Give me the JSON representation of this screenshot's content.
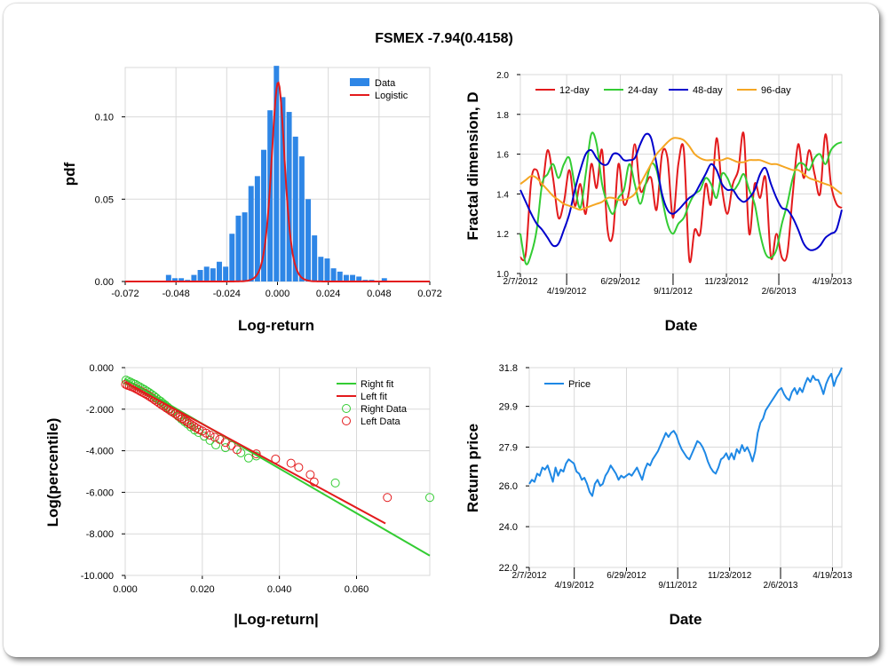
{
  "page": {
    "title": "FSMEX -7.94(0.4158)",
    "colors": {
      "grid": "#d9d9d9",
      "axis": "#000000",
      "bar": "#2e86e6",
      "red": "#e31a1c",
      "green": "#33cc33",
      "blue": "#0000cc",
      "orange": "#f5a623",
      "price": "#1e88e5"
    }
  },
  "chart_data": [
    {
      "id": "pdf",
      "type": "bar",
      "xlabel": "Log-return",
      "ylabel": "pdf",
      "xlim": [
        -0.072,
        0.072
      ],
      "ylim": [
        0,
        0.13
      ],
      "x_ticks": [
        "-0.072",
        "-0.048",
        "-0.024",
        "0.000",
        "0.024",
        "0.048",
        "0.072"
      ],
      "x_tick_values": [
        -0.072,
        -0.048,
        -0.024,
        0.0,
        0.024,
        0.048,
        0.072
      ],
      "y_ticks": [
        "0.00",
        "0.05",
        "0.10"
      ],
      "y_tick_values": [
        0.0,
        0.05,
        0.1
      ],
      "legend": [
        {
          "label": "Data",
          "kind": "bar"
        },
        {
          "label": "Logistic",
          "kind": "line"
        }
      ],
      "bins": [
        {
          "x": -0.0515,
          "y": 0.004
        },
        {
          "x": -0.0485,
          "y": 0.002
        },
        {
          "x": -0.0455,
          "y": 0.002
        },
        {
          "x": -0.0425,
          "y": 0.001
        },
        {
          "x": -0.0395,
          "y": 0.004
        },
        {
          "x": -0.0365,
          "y": 0.007
        },
        {
          "x": -0.0335,
          "y": 0.009
        },
        {
          "x": -0.0305,
          "y": 0.008
        },
        {
          "x": -0.0275,
          "y": 0.012
        },
        {
          "x": -0.0245,
          "y": 0.009
        },
        {
          "x": -0.0215,
          "y": 0.029
        },
        {
          "x": -0.0185,
          "y": 0.04
        },
        {
          "x": -0.0155,
          "y": 0.042
        },
        {
          "x": -0.0125,
          "y": 0.058
        },
        {
          "x": -0.0095,
          "y": 0.064
        },
        {
          "x": -0.0065,
          "y": 0.08
        },
        {
          "x": -0.0035,
          "y": 0.104
        },
        {
          "x": -0.0005,
          "y": 0.131
        },
        {
          "x": 0.0025,
          "y": 0.112
        },
        {
          "x": 0.0055,
          "y": 0.103
        },
        {
          "x": 0.0085,
          "y": 0.088
        },
        {
          "x": 0.0115,
          "y": 0.076
        },
        {
          "x": 0.0145,
          "y": 0.05
        },
        {
          "x": 0.0175,
          "y": 0.028
        },
        {
          "x": 0.0205,
          "y": 0.015
        },
        {
          "x": 0.0235,
          "y": 0.014
        },
        {
          "x": 0.0265,
          "y": 0.008
        },
        {
          "x": 0.0295,
          "y": 0.006
        },
        {
          "x": 0.0325,
          "y": 0.004
        },
        {
          "x": 0.0355,
          "y": 0.004
        },
        {
          "x": 0.0385,
          "y": 0.003
        },
        {
          "x": 0.0415,
          "y": 0.001
        },
        {
          "x": 0.0445,
          "y": 0.001
        },
        {
          "x": 0.0505,
          "y": 0.002
        }
      ],
      "bin_width": 0.0025,
      "logistic": {
        "mu": 0.0003,
        "s": 0.0021
      }
    },
    {
      "id": "fractal",
      "type": "line",
      "xlabel": "Date",
      "ylabel": "Fractal dimension, D",
      "ylim": [
        1.0,
        2.0
      ],
      "y_ticks": [
        "1.0",
        "1.2",
        "1.4",
        "1.6",
        "1.8",
        "2.0"
      ],
      "y_tick_values": [
        1.0,
        1.2,
        1.4,
        1.6,
        1.8,
        2.0
      ],
      "x_ticks_top": [
        "2/7/2012",
        "6/29/2012",
        "11/23/2012",
        "4/19/2013"
      ],
      "x_ticks_bottom": [
        "4/19/2012",
        "9/11/2012",
        "2/6/2013"
      ],
      "x_tick_positions": [
        0.0,
        0.144,
        0.311,
        0.475,
        0.641,
        0.804,
        0.97
      ],
      "legend": [
        "12-day",
        "24-day",
        "48-day",
        "96-day"
      ],
      "series": [
        {
          "name": "12-day",
          "color": "red",
          "values": [
            1.08,
            1.1,
            1.47,
            1.52,
            1.44,
            1.62,
            1.48,
            1.28,
            1.36,
            1.52,
            1.34,
            1.45,
            1.3,
            1.55,
            1.43,
            1.62,
            1.22,
            1.2,
            1.55,
            1.35,
            1.42,
            1.65,
            1.42,
            1.45,
            1.48,
            1.32,
            1.6,
            1.58,
            1.28,
            1.55,
            1.62,
            1.07,
            1.22,
            1.2,
            1.45,
            1.35,
            1.68,
            1.43,
            1.3,
            1.45,
            1.52,
            1.7,
            1.2,
            1.45,
            1.38,
            1.48,
            1.08,
            1.2,
            1.08,
            1.1,
            1.4,
            1.65,
            1.48,
            1.62,
            1.5,
            1.4,
            1.7,
            1.45,
            1.35,
            1.33
          ]
        },
        {
          "name": "24-day",
          "color": "green",
          "values": [
            1.2,
            1.05,
            1.1,
            1.22,
            1.45,
            1.5,
            1.55,
            1.48,
            1.55,
            1.58,
            1.44,
            1.33,
            1.5,
            1.7,
            1.65,
            1.45,
            1.35,
            1.3,
            1.38,
            1.42,
            1.55,
            1.45,
            1.35,
            1.45,
            1.55,
            1.52,
            1.38,
            1.25,
            1.2,
            1.25,
            1.28,
            1.35,
            1.4,
            1.42,
            1.48,
            1.45,
            1.38,
            1.5,
            1.48,
            1.42,
            1.45,
            1.5,
            1.42,
            1.35,
            1.2,
            1.1,
            1.08,
            1.12,
            1.25,
            1.35,
            1.48,
            1.55,
            1.55,
            1.52,
            1.58,
            1.6,
            1.55,
            1.62,
            1.65,
            1.66
          ]
        },
        {
          "name": "48-day",
          "color": "blue",
          "values": [
            1.42,
            1.36,
            1.3,
            1.25,
            1.22,
            1.18,
            1.14,
            1.15,
            1.22,
            1.3,
            1.42,
            1.52,
            1.6,
            1.62,
            1.58,
            1.55,
            1.55,
            1.6,
            1.6,
            1.57,
            1.57,
            1.58,
            1.65,
            1.7,
            1.68,
            1.55,
            1.4,
            1.32,
            1.3,
            1.32,
            1.35,
            1.38,
            1.4,
            1.45,
            1.5,
            1.55,
            1.52,
            1.45,
            1.42,
            1.42,
            1.38,
            1.36,
            1.38,
            1.42,
            1.5,
            1.53,
            1.45,
            1.38,
            1.33,
            1.32,
            1.28,
            1.22,
            1.15,
            1.12,
            1.12,
            1.14,
            1.18,
            1.2,
            1.22,
            1.32
          ]
        },
        {
          "name": "96-day",
          "color": "orange",
          "values": [
            1.45,
            1.47,
            1.49,
            1.48,
            1.45,
            1.42,
            1.39,
            1.37,
            1.35,
            1.34,
            1.33,
            1.32,
            1.33,
            1.34,
            1.35,
            1.36,
            1.38,
            1.38,
            1.37,
            1.37,
            1.38,
            1.4,
            1.45,
            1.5,
            1.55,
            1.6,
            1.63,
            1.66,
            1.68,
            1.68,
            1.67,
            1.64,
            1.6,
            1.58,
            1.57,
            1.57,
            1.57,
            1.57,
            1.58,
            1.57,
            1.56,
            1.56,
            1.57,
            1.57,
            1.57,
            1.56,
            1.55,
            1.55,
            1.54,
            1.53,
            1.52,
            1.52,
            1.5,
            1.48,
            1.47,
            1.46,
            1.45,
            1.44,
            1.42,
            1.4
          ]
        }
      ]
    },
    {
      "id": "tail",
      "type": "scatter",
      "xlabel": "|Log-return|",
      "ylabel": "Log(percentile)",
      "xlim": [
        0,
        0.079
      ],
      "ylim": [
        -10,
        0
      ],
      "x_ticks": [
        "0.000",
        "0.020",
        "0.040",
        "0.060"
      ],
      "x_tick_values": [
        0.0,
        0.02,
        0.04,
        0.06
      ],
      "y_ticks": [
        "0.000",
        "-2.000",
        "-4.000",
        "-6.000",
        "-8.000",
        "-10.000"
      ],
      "y_tick_values": [
        0,
        -2,
        -4,
        -6,
        -8,
        -10
      ],
      "legend": [
        "Right fit",
        "Left fit",
        "Right Data",
        "Left Data"
      ],
      "right_fit": {
        "x": [
          0.0,
          0.079
        ],
        "y": [
          -0.55,
          -9.05
        ]
      },
      "left_fit": {
        "x": [
          0.0,
          0.0675
        ],
        "y": [
          -0.7,
          -7.5
        ]
      },
      "right_data": [
        [
          0.0002,
          -0.6
        ],
        [
          0.0008,
          -0.65
        ],
        [
          0.0014,
          -0.7
        ],
        [
          0.002,
          -0.76
        ],
        [
          0.0026,
          -0.8
        ],
        [
          0.0032,
          -0.87
        ],
        [
          0.0038,
          -0.93
        ],
        [
          0.0044,
          -1.0
        ],
        [
          0.005,
          -1.06
        ],
        [
          0.0056,
          -1.13
        ],
        [
          0.0062,
          -1.2
        ],
        [
          0.0068,
          -1.28
        ],
        [
          0.0074,
          -1.36
        ],
        [
          0.008,
          -1.45
        ],
        [
          0.0086,
          -1.55
        ],
        [
          0.0092,
          -1.62
        ],
        [
          0.0098,
          -1.72
        ],
        [
          0.0104,
          -1.8
        ],
        [
          0.011,
          -1.9
        ],
        [
          0.0116,
          -2.0
        ],
        [
          0.0122,
          -2.1
        ],
        [
          0.013,
          -2.22
        ],
        [
          0.0138,
          -2.35
        ],
        [
          0.0146,
          -2.48
        ],
        [
          0.0154,
          -2.6
        ],
        [
          0.0162,
          -2.72
        ],
        [
          0.017,
          -2.85
        ],
        [
          0.018,
          -3.0
        ],
        [
          0.019,
          -3.12
        ],
        [
          0.0205,
          -3.3
        ],
        [
          0.022,
          -3.5
        ],
        [
          0.0235,
          -3.72
        ],
        [
          0.026,
          -3.85
        ],
        [
          0.03,
          -4.1
        ],
        [
          0.032,
          -4.35
        ],
        [
          0.034,
          -4.25
        ],
        [
          0.0545,
          -5.55
        ],
        [
          0.079,
          -6.25
        ]
      ],
      "left_data": [
        [
          0.0001,
          -0.8
        ],
        [
          0.0006,
          -0.85
        ],
        [
          0.0011,
          -0.88
        ],
        [
          0.0016,
          -0.92
        ],
        [
          0.0021,
          -0.95
        ],
        [
          0.0026,
          -1.0
        ],
        [
          0.0031,
          -1.05
        ],
        [
          0.0036,
          -1.1
        ],
        [
          0.0041,
          -1.15
        ],
        [
          0.0046,
          -1.2
        ],
        [
          0.0051,
          -1.25
        ],
        [
          0.0056,
          -1.3
        ],
        [
          0.0061,
          -1.36
        ],
        [
          0.0066,
          -1.42
        ],
        [
          0.0071,
          -1.48
        ],
        [
          0.0076,
          -1.55
        ],
        [
          0.0082,
          -1.62
        ],
        [
          0.0088,
          -1.7
        ],
        [
          0.0094,
          -1.78
        ],
        [
          0.01,
          -1.85
        ],
        [
          0.0106,
          -1.93
        ],
        [
          0.0112,
          -2.0
        ],
        [
          0.0118,
          -2.08
        ],
        [
          0.0124,
          -2.15
        ],
        [
          0.013,
          -2.22
        ],
        [
          0.0136,
          -2.3
        ],
        [
          0.0142,
          -2.38
        ],
        [
          0.0148,
          -2.45
        ],
        [
          0.0154,
          -2.52
        ],
        [
          0.016,
          -2.6
        ],
        [
          0.0166,
          -2.68
        ],
        [
          0.0172,
          -2.75
        ],
        [
          0.0178,
          -2.82
        ],
        [
          0.0185,
          -2.9
        ],
        [
          0.0192,
          -2.98
        ],
        [
          0.02,
          -3.05
        ],
        [
          0.021,
          -3.15
        ],
        [
          0.022,
          -3.25
        ],
        [
          0.0232,
          -3.35
        ],
        [
          0.0245,
          -3.45
        ],
        [
          0.026,
          -3.6
        ],
        [
          0.0275,
          -3.75
        ],
        [
          0.029,
          -3.95
        ],
        [
          0.034,
          -4.15
        ],
        [
          0.039,
          -4.4
        ],
        [
          0.043,
          -4.6
        ],
        [
          0.045,
          -4.8
        ],
        [
          0.048,
          -5.15
        ],
        [
          0.049,
          -5.5
        ],
        [
          0.068,
          -6.25
        ]
      ]
    },
    {
      "id": "price",
      "type": "line",
      "xlabel": "Date",
      "ylabel": "Return price",
      "ylim": [
        22.0,
        31.8
      ],
      "y_ticks": [
        "22.0",
        "24.0",
        "26.0",
        "27.9",
        "29.9",
        "31.8"
      ],
      "y_tick_values": [
        22.0,
        24.0,
        26.0,
        27.9,
        29.9,
        31.8
      ],
      "x_ticks_top": [
        "2/7/2012",
        "6/29/2012",
        "11/23/2012",
        "4/19/2013"
      ],
      "x_ticks_bottom": [
        "4/19/2012",
        "9/11/2012",
        "2/6/2013"
      ],
      "x_tick_positions": [
        0.0,
        0.144,
        0.311,
        0.475,
        0.641,
        0.804,
        0.97
      ],
      "legend": [
        "Price"
      ],
      "series": [
        {
          "name": "Price",
          "color": "price",
          "values": [
            26.1,
            26.3,
            26.2,
            26.6,
            26.5,
            26.9,
            26.8,
            27.0,
            26.6,
            26.2,
            26.9,
            26.5,
            26.8,
            26.7,
            27.1,
            27.3,
            27.2,
            27.1,
            26.7,
            26.6,
            26.3,
            26.4,
            26.1,
            25.7,
            25.5,
            26.1,
            26.3,
            26.0,
            26.1,
            26.5,
            26.7,
            27.0,
            26.8,
            26.6,
            26.3,
            26.5,
            26.4,
            26.5,
            26.6,
            26.5,
            26.7,
            26.9,
            26.6,
            26.3,
            26.8,
            27.1,
            27.0,
            27.3,
            27.5,
            27.7,
            28.0,
            28.3,
            28.6,
            28.4,
            28.6,
            28.7,
            28.5,
            28.1,
            27.8,
            27.6,
            27.4,
            27.3,
            27.6,
            27.9,
            28.2,
            28.1,
            27.9,
            27.6,
            27.2,
            26.9,
            26.7,
            26.6,
            26.9,
            27.3,
            27.4,
            27.6,
            27.3,
            27.6,
            27.3,
            27.8,
            27.6,
            28.0,
            27.7,
            27.9,
            27.6,
            27.2,
            27.7,
            28.6,
            29.1,
            29.3,
            29.7,
            29.9,
            30.1,
            30.3,
            30.5,
            30.7,
            30.8,
            30.5,
            30.3,
            30.2,
            30.6,
            30.8,
            30.5,
            30.8,
            30.6,
            31.0,
            31.3,
            31.1,
            31.4,
            31.2,
            31.2,
            30.9,
            30.5,
            31.0,
            31.3,
            31.5,
            30.9,
            31.3,
            31.5,
            31.8
          ]
        }
      ]
    }
  ]
}
